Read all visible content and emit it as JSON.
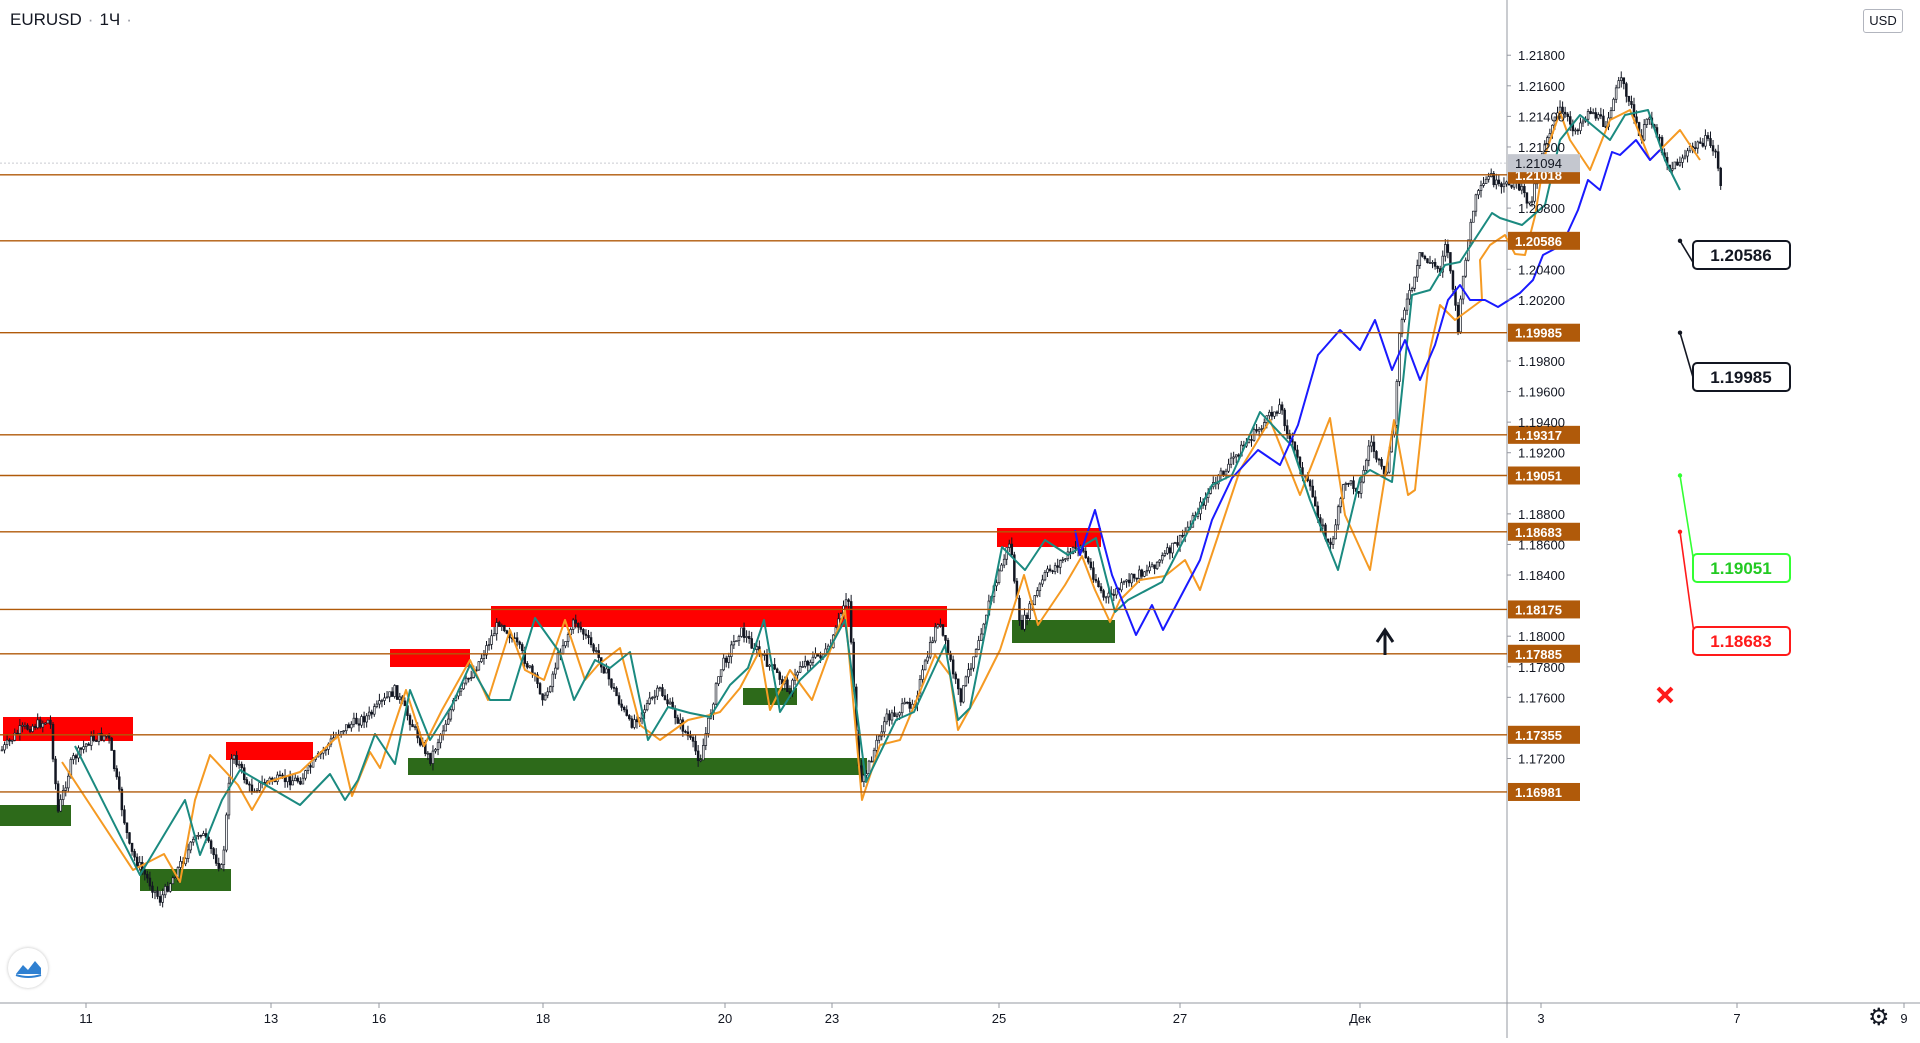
{
  "header": {
    "symbol": "EURUSD",
    "interval": "1Ч",
    "currency": "USD"
  },
  "icons": {
    "settings": "gear-icon",
    "logo": "tradingview-logo-icon"
  },
  "colors": {
    "level_line": "#b05a0a",
    "level_label_bg": "#b05a0a",
    "zigzag_orange": "#f59a23",
    "zigzag_teal": "#1b8a80",
    "forecast": "#1a1aff",
    "supply_zone": "#ff0000",
    "demand_zone": "#2d6a1a",
    "candle": "#131722",
    "target_green": "#33ff33",
    "stop_red": "#ff1a1a"
  },
  "chart_data": {
    "type": "candlestick",
    "price_range": [
      1.1685,
      1.2205
    ],
    "price_ticks": [
      "1.21800",
      "1.21600",
      "1.21400",
      "1.21200",
      "1.20800",
      "1.20400",
      "1.20200",
      "1.19800",
      "1.19600",
      "1.19400",
      "1.19200",
      "1.18800",
      "1.18600",
      "1.18400",
      "1.18000",
      "1.17800",
      "1.17600",
      "1.17200"
    ],
    "time_ticks": [
      "11",
      "13",
      "16",
      "18",
      "20",
      "23",
      "25",
      "27",
      "Дек",
      "3",
      "7",
      "9"
    ],
    "last_price": "1.21094",
    "levels": [
      "1.21018",
      "1.20586",
      "1.19985",
      "1.19317",
      "1.19051",
      "1.18683",
      "1.18175",
      "1.17885",
      "1.17355",
      "1.16981"
    ],
    "callouts": [
      {
        "label": "1.20586",
        "kind": "target"
      },
      {
        "label": "1.19985",
        "kind": "target"
      },
      {
        "label": "1.19051",
        "kind": "entry"
      },
      {
        "label": "1.18683",
        "kind": "stop"
      }
    ]
  }
}
